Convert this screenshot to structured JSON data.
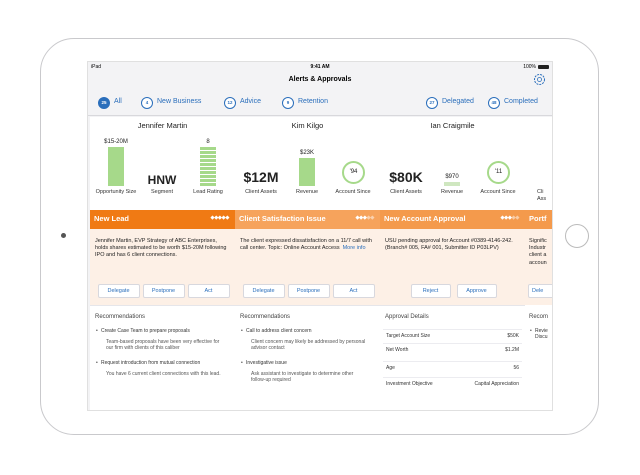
{
  "status_bar": {
    "device": "iPad",
    "time": "9:41 AM",
    "battery": "100%"
  },
  "header": {
    "title": "Alerts & Approvals"
  },
  "tabs": [
    {
      "count": 25,
      "label": "All"
    },
    {
      "count": 4,
      "label": "New Business"
    },
    {
      "count": 12,
      "label": "Advice"
    },
    {
      "count": 9,
      "label": "Retention"
    },
    {
      "count": 27,
      "label": "Delegated"
    },
    {
      "count": 48,
      "label": "Completed"
    }
  ],
  "cards": [
    {
      "name": "Jennifer Martin",
      "metrics": [
        {
          "value": "$15-20M",
          "label": "Opportunity Size"
        },
        {
          "value": "HNW",
          "label": "Segment"
        },
        {
          "value": "8",
          "label": "Lead Rating"
        }
      ],
      "alert": "New Lead",
      "description": "Jennifer Martin, EVP Strategy of ABC Enterprises, holds shares estimated to be worth $15-20M following IPO and has 6 client connections.",
      "actions": [
        "Delegate",
        "Postpone",
        "Act"
      ],
      "section_title": "Recommendations",
      "items": [
        {
          "text": "Create Case Team to prepare proposals",
          "note": "Team-based proposals have been very effective for our firm with clients of this caliber"
        },
        {
          "text": "Request introduction from mutual connection",
          "note": "You have 6 current client connections with this lead."
        }
      ]
    },
    {
      "name": "Kim Kilgo",
      "metrics": [
        {
          "value": "$12M",
          "label": "Client Assets"
        },
        {
          "value": "$23K",
          "label": "Revenue"
        },
        {
          "value": "'94",
          "label": "Account Since"
        }
      ],
      "alert": "Client Satisfaction Issue",
      "description": "The client expressed dissatisfaction on a 11/7 call with call center.  Topic: Online Account Access",
      "link": "More info",
      "actions": [
        "Delegate",
        "Postpone",
        "Act"
      ],
      "section_title": "Recommendations",
      "items": [
        {
          "text": "Call to address client concern",
          "note": "Client concern may likely be addressed by personal advisor contact"
        },
        {
          "text": "Investigative issue",
          "note": "Ask assistant to investigate to determine other follow-up required"
        }
      ]
    },
    {
      "name": "Ian Craigmile",
      "metrics": [
        {
          "value": "$80K",
          "label": "Client Assets"
        },
        {
          "value": "$970",
          "label": "Revenue"
        },
        {
          "value": "'11",
          "label": "Account Since"
        }
      ],
      "alert": "New Account Approval",
      "description": "USU pending approval for Account #0389-4146-242. (Branch# 005, FA# 001, Submitter ID P03LPV)",
      "actions": [
        "Reject",
        "Approve"
      ],
      "section_title": "Approval Details",
      "rows": [
        [
          "Target Account Size",
          "$50K"
        ],
        [
          "Net Worth",
          "$1.2M"
        ],
        [
          "Age",
          "56"
        ],
        [
          "Investment Objective",
          "Capital Appreciation"
        ]
      ]
    }
  ],
  "partial_card": {
    "metric_label": [
      "Cli",
      "Ass"
    ],
    "alert": "Portf",
    "description": [
      "Signific",
      "Industr",
      "client a",
      "accoun"
    ],
    "action": "Dele",
    "section_title": "Recom",
    "item": [
      "Revie",
      "Discu"
    ]
  }
}
